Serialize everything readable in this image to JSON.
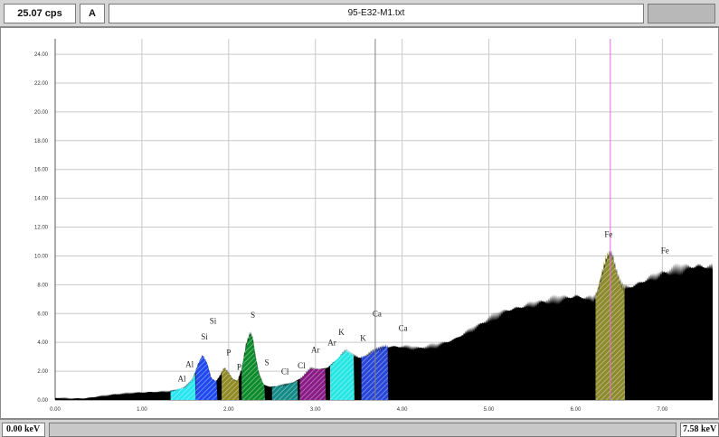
{
  "header": {
    "count_rate": "25.07 cps",
    "label": "A",
    "filename": "95-E32-M1.txt"
  },
  "footer": {
    "start_energy": "0.00 keV",
    "end_energy": "7.58 keV"
  },
  "colors": {
    "background": "#000000",
    "Al": "#27e6ef",
    "Si": "#1f49ee",
    "P": "#8f8a24",
    "S": "#0c8a2c",
    "Cl": "#128a86",
    "Ar": "#8a1b86",
    "K": "#25e6e3",
    "Ca": "#2746d8",
    "Fe": "#8c8a2c",
    "fe_line": "#e070e0"
  },
  "chart_data": {
    "type": "area",
    "title": "",
    "xlabel": "",
    "ylabel": "",
    "xlim": [
      0,
      7.58
    ],
    "ylim": [
      0,
      25.07
    ],
    "grid": true,
    "x_ticks": [
      0,
      1,
      2,
      3,
      4,
      5,
      6,
      7
    ],
    "x_tick_labels": [
      "0.00",
      "1.00",
      "2.00",
      "3.00",
      "4.00",
      "5.00",
      "6.00",
      "7.00"
    ],
    "y_ticks": [
      0,
      2,
      4,
      6,
      8,
      10,
      12,
      14,
      16,
      18,
      20,
      22,
      24
    ],
    "y_tick_labels": [
      "0.00",
      "2.00",
      "4.00",
      "6.00",
      "8.00",
      "10.00",
      "12.00",
      "14.00",
      "16.00",
      "18.00",
      "20.00",
      "22.00",
      "24.00"
    ],
    "series": [
      {
        "x": [
          0.0,
          0.2,
          0.35,
          0.5,
          0.7,
          0.9,
          1.1,
          1.3,
          1.4,
          1.5,
          1.58,
          1.65,
          1.7,
          1.75,
          1.8,
          1.85,
          1.9,
          1.95,
          2.0,
          2.05,
          2.1,
          2.15,
          2.2,
          2.25,
          2.28,
          2.31,
          2.35,
          2.4,
          2.48,
          2.6,
          2.75,
          2.85,
          2.95,
          3.05,
          3.15,
          3.25,
          3.3,
          3.35,
          3.42,
          3.5,
          3.6,
          3.7,
          3.8,
          3.9,
          4.0,
          4.2,
          4.4,
          4.6,
          4.8,
          5.0,
          5.2,
          5.4,
          5.6,
          5.8,
          6.0,
          6.1,
          6.2,
          6.25,
          6.3,
          6.35,
          6.38,
          6.42,
          6.46,
          6.5,
          6.55,
          6.6,
          6.7,
          6.8,
          7.0,
          7.2,
          7.4,
          7.58
        ],
        "y": [
          0.15,
          0.1,
          0.12,
          0.25,
          0.4,
          0.5,
          0.55,
          0.6,
          0.7,
          0.9,
          1.4,
          2.5,
          3.1,
          2.6,
          1.5,
          1.3,
          1.7,
          2.2,
          1.9,
          1.4,
          1.3,
          2.2,
          3.8,
          4.6,
          4.2,
          3.0,
          1.8,
          1.1,
          0.9,
          1.0,
          1.2,
          1.6,
          2.2,
          2.1,
          2.3,
          2.8,
          3.2,
          3.4,
          3.2,
          2.9,
          3.1,
          3.5,
          3.7,
          3.7,
          3.7,
          3.6,
          3.8,
          4.2,
          4.9,
          5.6,
          6.2,
          6.5,
          6.8,
          7.0,
          7.2,
          7.1,
          7.0,
          7.5,
          8.6,
          9.8,
          10.2,
          10.0,
          9.0,
          8.4,
          7.8,
          7.8,
          8.0,
          8.3,
          8.8,
          9.1,
          9.3,
          9.2
        ]
      }
    ],
    "regions": [
      {
        "element": "Al",
        "xmin": 1.33,
        "xmax": 1.62
      },
      {
        "element": "Si",
        "xmin": 1.62,
        "xmax": 1.87
      },
      {
        "element": "P",
        "xmin": 1.92,
        "xmax": 2.12
      },
      {
        "element": "S",
        "xmin": 2.15,
        "xmax": 2.42
      },
      {
        "element": "Cl",
        "xmin": 2.5,
        "xmax": 2.8
      },
      {
        "element": "Ar",
        "xmin": 2.82,
        "xmax": 3.12
      },
      {
        "element": "K",
        "xmin": 3.17,
        "xmax": 3.45
      },
      {
        "element": "Ca",
        "xmin": 3.53,
        "xmax": 3.84
      },
      {
        "element": "Fe",
        "xmin": 6.23,
        "xmax": 6.57
      }
    ],
    "line_markers": [
      {
        "energy": 6.4,
        "color": "#e070e0"
      },
      {
        "energy": 3.69,
        "color": "#808080"
      }
    ],
    "annotations": [
      {
        "text": "Al",
        "x": 1.46,
        "y": 1.3
      },
      {
        "text": "Al",
        "x": 1.55,
        "y": 2.3
      },
      {
        "text": "Si",
        "x": 1.72,
        "y": 4.2
      },
      {
        "text": "Si",
        "x": 1.82,
        "y": 5.3
      },
      {
        "text": "P",
        "x": 2.0,
        "y": 3.1
      },
      {
        "text": "P",
        "x": 2.12,
        "y": 2.1
      },
      {
        "text": "S",
        "x": 2.28,
        "y": 5.7
      },
      {
        "text": "S",
        "x": 2.44,
        "y": 2.4
      },
      {
        "text": "Cl",
        "x": 2.65,
        "y": 1.8
      },
      {
        "text": "Cl",
        "x": 2.84,
        "y": 2.2
      },
      {
        "text": "Ar",
        "x": 3.0,
        "y": 3.3
      },
      {
        "text": "Ar",
        "x": 3.19,
        "y": 3.8
      },
      {
        "text": "K",
        "x": 3.3,
        "y": 4.5
      },
      {
        "text": "K",
        "x": 3.55,
        "y": 4.1
      },
      {
        "text": "Ca",
        "x": 3.71,
        "y": 5.8
      },
      {
        "text": "Ca",
        "x": 4.01,
        "y": 4.8
      },
      {
        "text": "Fe",
        "x": 6.38,
        "y": 11.3
      },
      {
        "text": "Fe",
        "x": 7.03,
        "y": 10.2
      }
    ]
  }
}
